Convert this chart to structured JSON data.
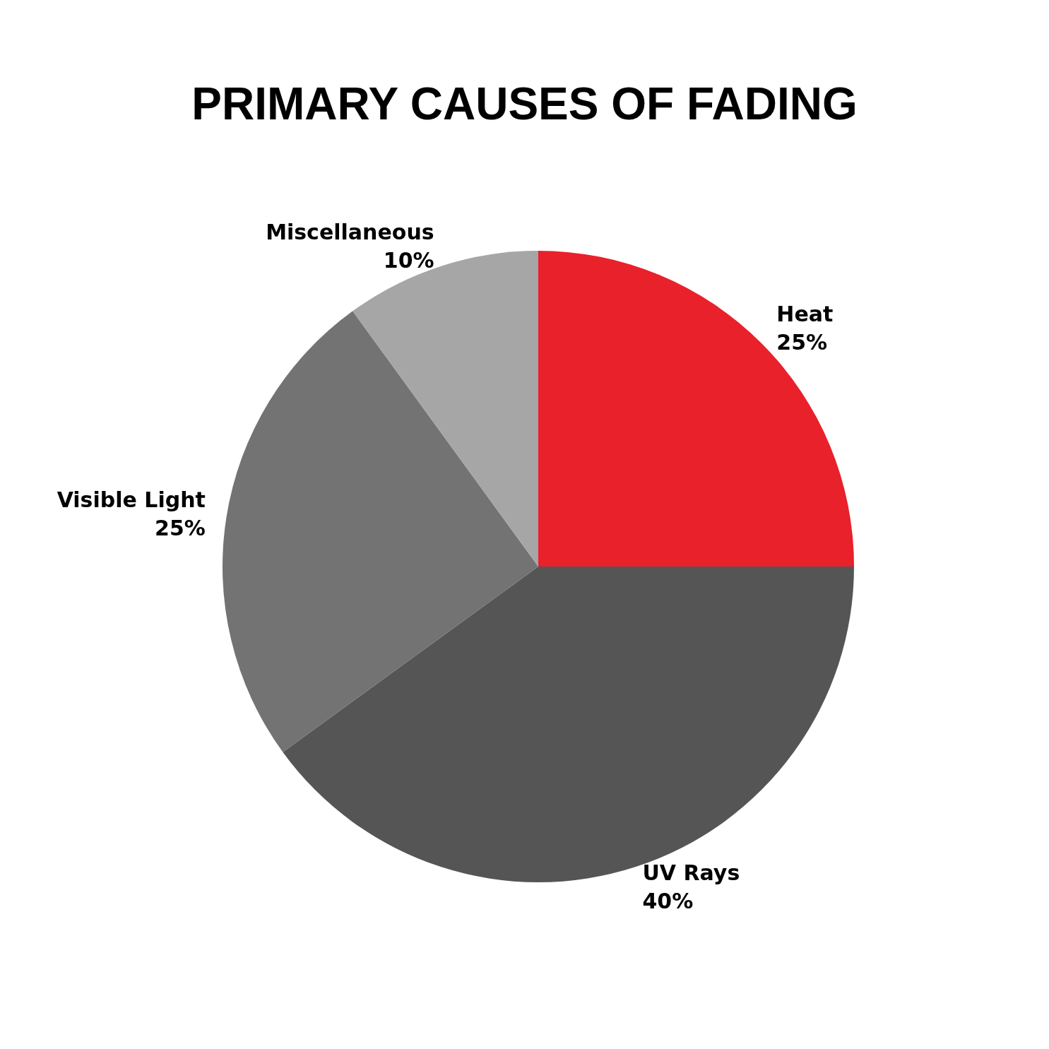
{
  "chart_data": {
    "type": "pie",
    "title": "PRIMARY CAUSES OF FADING",
    "categories": [
      "Heat",
      "UV Rays",
      "Visible Light",
      "Miscellaneous"
    ],
    "values": [
      25,
      40,
      25,
      10
    ],
    "value_labels": [
      "25%",
      "40%",
      "25%",
      "10%"
    ],
    "colors": [
      "#e8212b",
      "#555555",
      "#737373",
      "#a6a6a6"
    ],
    "legend": false
  }
}
